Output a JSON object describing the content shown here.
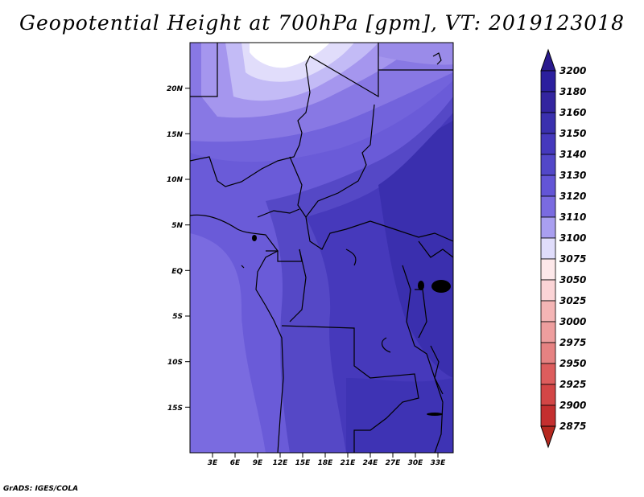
{
  "title": "Geopotential Height at 700hPa [gpm], VT: 2019123018",
  "credit": "GrADS: IGES/COLA",
  "map": {
    "variable": "Geopotential Height",
    "level": "700hPa",
    "units": "gpm",
    "valid_time": "2019123018",
    "lon_range": [
      0,
      35
    ],
    "lat_range": [
      -20,
      25
    ],
    "lat_ticks": [
      {
        "value": 20,
        "label": "20N"
      },
      {
        "value": 15,
        "label": "15N"
      },
      {
        "value": 10,
        "label": "10N"
      },
      {
        "value": 5,
        "label": "5N"
      },
      {
        "value": 0,
        "label": "EQ"
      },
      {
        "value": -5,
        "label": "5S"
      },
      {
        "value": -10,
        "label": "10S"
      },
      {
        "value": -15,
        "label": "15S"
      }
    ],
    "lon_ticks": [
      {
        "value": 3,
        "label": "3E"
      },
      {
        "value": 6,
        "label": "6E"
      },
      {
        "value": 9,
        "label": "9E"
      },
      {
        "value": 12,
        "label": "12E"
      },
      {
        "value": 15,
        "label": "15E"
      },
      {
        "value": 18,
        "label": "18E"
      },
      {
        "value": 21,
        "label": "21E"
      },
      {
        "value": 24,
        "label": "24E"
      },
      {
        "value": 27,
        "label": "27E"
      },
      {
        "value": 30,
        "label": "30E"
      },
      {
        "value": 33,
        "label": "33E"
      }
    ]
  },
  "colorbar": {
    "levels": [
      {
        "label": "3200",
        "color": "#2b1f9e"
      },
      {
        "label": "3180",
        "color": "#33259f"
      },
      {
        "label": "3160",
        "color": "#3a30ae"
      },
      {
        "label": "3150",
        "color": "#4539bd"
      },
      {
        "label": "3140",
        "color": "#5247c8"
      },
      {
        "label": "3130",
        "color": "#6355d6"
      },
      {
        "label": "3120",
        "color": "#7a6be0"
      },
      {
        "label": "3110",
        "color": "#a99ff0"
      },
      {
        "label": "3100",
        "color": "#e0ddfb"
      },
      {
        "label": "3075",
        "color": "#fde8ea"
      },
      {
        "label": "3050",
        "color": "#fbd4d6"
      },
      {
        "label": "3025",
        "color": "#f4b5b5"
      },
      {
        "label": "3000",
        "color": "#ee9e9e"
      },
      {
        "label": "2975",
        "color": "#e68282"
      },
      {
        "label": "2950",
        "color": "#dd5d5d"
      },
      {
        "label": "2925",
        "color": "#d34646"
      },
      {
        "label": "2900",
        "color": "#c42f2f"
      },
      {
        "label": "2875",
        "color": "#b22a22"
      }
    ],
    "top_arrow_color": "#2a1a8e",
    "bottom_arrow_color": "#b5281f"
  }
}
